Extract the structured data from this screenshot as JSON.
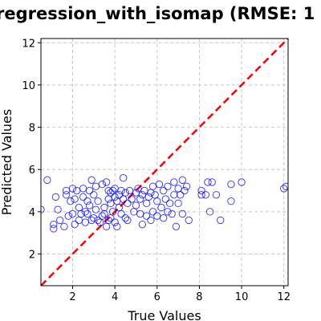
{
  "chart_data": {
    "type": "scatter",
    "title": "regression_with_isomap (RMSE: 1",
    "xlabel": "True Values",
    "ylabel": "Predicted Values",
    "xlim": [
      0.5,
      12.2
    ],
    "ylim": [
      0.5,
      12.2
    ],
    "xticks": [
      "2",
      "4",
      "6",
      "8",
      "10",
      "12"
    ],
    "yticks": [
      "2",
      "4",
      "6",
      "8",
      "10",
      "12"
    ],
    "grid": true,
    "reference_line": {
      "from": [
        0.5,
        0.5
      ],
      "to": [
        12.2,
        12.2
      ],
      "style": "dashed",
      "color": "#ff0000"
    },
    "marker_color": "#0000ff",
    "series": [
      {
        "points": [
          [
            0.5,
            4.1
          ],
          [
            0.8,
            5.5
          ],
          [
            1.1,
            3.2
          ],
          [
            1.1,
            3.4
          ],
          [
            1.2,
            4.7
          ],
          [
            1.3,
            4.1
          ],
          [
            1.4,
            3.6
          ],
          [
            1.6,
            3.3
          ],
          [
            1.7,
            4.8
          ],
          [
            1.7,
            5.0
          ],
          [
            1.8,
            3.8
          ],
          [
            1.9,
            4.5
          ],
          [
            2.0,
            5.1
          ],
          [
            2.0,
            3.9
          ],
          [
            2.1,
            4.6
          ],
          [
            2.1,
            3.4
          ],
          [
            2.2,
            5.0
          ],
          [
            2.3,
            3.6
          ],
          [
            2.3,
            4.2
          ],
          [
            2.4,
            3.9
          ],
          [
            2.5,
            4.7
          ],
          [
            2.5,
            5.1
          ],
          [
            2.6,
            4.0
          ],
          [
            2.6,
            3.5
          ],
          [
            2.7,
            4.5
          ],
          [
            2.7,
            3.9
          ],
          [
            2.8,
            5.0
          ],
          [
            2.8,
            4.3
          ],
          [
            2.9,
            3.6
          ],
          [
            2.9,
            5.5
          ],
          [
            3.0,
            4.8
          ],
          [
            3.0,
            3.7
          ],
          [
            3.1,
            5.2
          ],
          [
            3.1,
            4.1
          ],
          [
            3.2,
            3.6
          ],
          [
            3.2,
            4.5
          ],
          [
            3.3,
            3.5
          ],
          [
            3.4,
            3.8
          ],
          [
            3.4,
            5.3
          ],
          [
            3.5,
            4.2
          ],
          [
            3.5,
            3.9
          ],
          [
            3.6,
            5.4
          ],
          [
            3.6,
            3.3
          ],
          [
            3.7,
            4.6
          ],
          [
            3.7,
            5.0
          ],
          [
            3.7,
            3.6
          ],
          [
            3.8,
            4.9
          ],
          [
            3.8,
            4.4
          ],
          [
            3.8,
            3.7
          ],
          [
            3.9,
            5.0
          ],
          [
            3.9,
            4.0
          ],
          [
            4.0,
            4.7
          ],
          [
            4.0,
            3.5
          ],
          [
            4.0,
            5.1
          ],
          [
            4.1,
            4.5
          ],
          [
            4.1,
            3.3
          ],
          [
            4.2,
            4.8
          ],
          [
            4.2,
            4.2
          ],
          [
            4.3,
            5.0
          ],
          [
            4.3,
            3.9
          ],
          [
            4.4,
            4.6
          ],
          [
            4.4,
            5.6
          ],
          [
            4.5,
            3.7
          ],
          [
            4.5,
            4.9
          ],
          [
            4.6,
            4.4
          ],
          [
            4.6,
            3.6
          ],
          [
            4.7,
            5.0
          ],
          [
            4.8,
            4.6
          ],
          [
            4.9,
            4.0
          ],
          [
            5.0,
            4.9
          ],
          [
            5.0,
            4.3
          ],
          [
            5.1,
            5.1
          ],
          [
            5.2,
            4.6
          ],
          [
            5.2,
            3.9
          ],
          [
            5.3,
            3.4
          ],
          [
            5.3,
            4.8
          ],
          [
            5.4,
            5.0
          ],
          [
            5.5,
            4.4
          ],
          [
            5.5,
            3.8
          ],
          [
            5.6,
            4.7
          ],
          [
            5.7,
            4.9
          ],
          [
            5.7,
            3.6
          ],
          [
            5.8,
            5.2
          ],
          [
            5.8,
            4.0
          ],
          [
            5.9,
            4.8
          ],
          [
            6.0,
            4.5
          ],
          [
            6.0,
            3.8
          ],
          [
            6.1,
            5.3
          ],
          [
            6.2,
            4.2
          ],
          [
            6.3,
            5.0
          ],
          [
            6.3,
            3.7
          ],
          [
            6.4,
            4.6
          ],
          [
            6.5,
            5.2
          ],
          [
            6.5,
            4.0
          ],
          [
            6.6,
            4.4
          ],
          [
            6.7,
            3.9
          ],
          [
            6.8,
            5.4
          ],
          [
            6.8,
            4.8
          ],
          [
            6.9,
            3.3
          ],
          [
            7.0,
            5.1
          ],
          [
            7.0,
            4.4
          ],
          [
            7.1,
            4.8
          ],
          [
            7.2,
            5.5
          ],
          [
            7.2,
            3.9
          ],
          [
            7.3,
            5.0
          ],
          [
            7.4,
            5.2
          ],
          [
            7.5,
            3.6
          ],
          [
            8.1,
            5.0
          ],
          [
            8.1,
            4.8
          ],
          [
            8.3,
            4.8
          ],
          [
            8.4,
            5.4
          ],
          [
            8.5,
            4.0
          ],
          [
            8.6,
            5.4
          ],
          [
            8.8,
            4.8
          ],
          [
            9.0,
            3.6
          ],
          [
            9.5,
            4.5
          ],
          [
            9.5,
            5.3
          ],
          [
            10.0,
            5.4
          ],
          [
            12.0,
            5.1
          ],
          [
            12.1,
            5.2
          ]
        ]
      }
    ]
  }
}
